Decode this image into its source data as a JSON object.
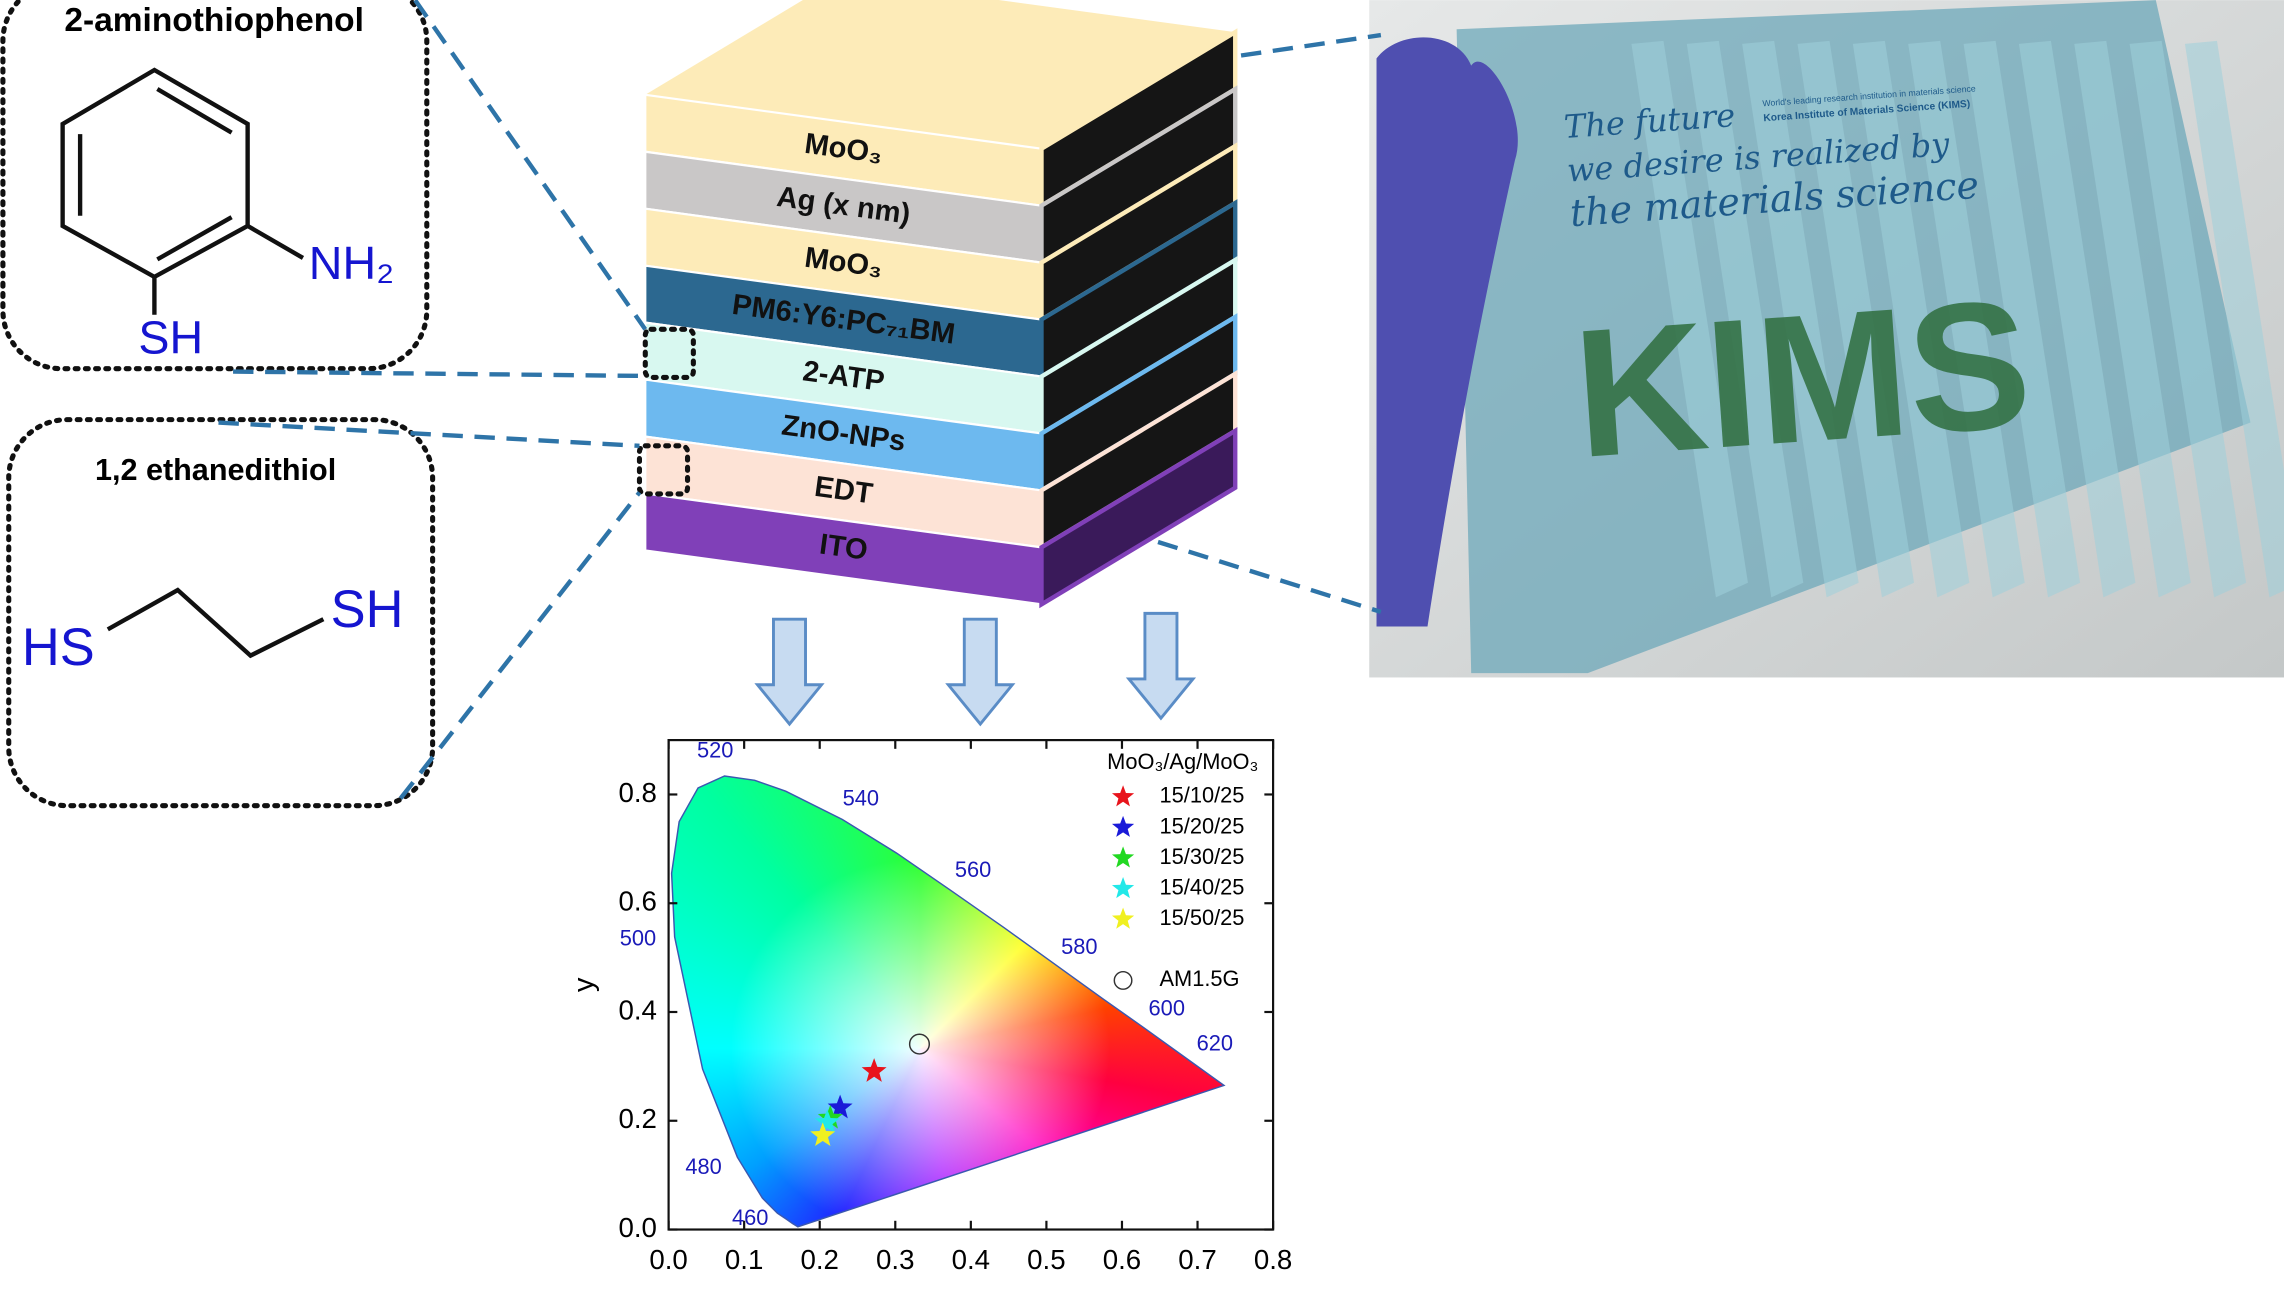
{
  "figure": {
    "molecule_1": {
      "name": "2-aminothiophenol",
      "groups": [
        "NH₂",
        "SH"
      ]
    },
    "molecule_2": {
      "name": "1,2 ethanedithiol",
      "groups": [
        "HS",
        "SH"
      ]
    },
    "layers": [
      {
        "label": "MoO₃",
        "color": "#fdebb8"
      },
      {
        "label": "Ag (x nm)",
        "color": "#c9c7c7"
      },
      {
        "label": "MoO₃",
        "color": "#fdebb8"
      },
      {
        "label": "PM6:Y6:PC₇₁BM",
        "color": "#2c6890"
      },
      {
        "label": "2-ATP",
        "color": "#d8f8f0"
      },
      {
        "label": "ZnO-NPs",
        "color": "#6db9ef"
      },
      {
        "label": "EDT",
        "color": "#fde3d6"
      },
      {
        "label": "ITO",
        "color": "#8040b8"
      }
    ],
    "photo": {
      "lines": [
        "The future",
        "we desire is realized by",
        "the materials science"
      ],
      "small_text": [
        "World's leading research institution in materials science",
        "Korea Institute of Materials Science (KIMS)"
      ],
      "logo": "KIMS"
    }
  },
  "chart_data": {
    "type": "scatter",
    "y_label": "y",
    "xlim": [
      0,
      0.8
    ],
    "ylim": [
      0,
      0.9
    ],
    "xticks": [
      {
        "value": 0,
        "label": "0.0"
      },
      0.1,
      0.2,
      0.3,
      0.4,
      0.5,
      0.6,
      0.7,
      0.8
    ],
    "yticks": [
      {
        "value": 0,
        "label": "0.0"
      },
      0.2,
      0.4,
      0.6,
      0.8
    ],
    "legend_title": "MoO₃/Ag/MoO₃",
    "wavelength_labels": [
      460,
      480,
      500,
      520,
      540,
      560,
      580,
      600,
      620
    ],
    "series": [
      {
        "name": "15/10/25",
        "color": "#e8141c",
        "marker": "star",
        "x": [
          0.272
        ],
        "values": [
          0.291
        ]
      },
      {
        "name": "15/20/25",
        "color": "#1a1ad8",
        "marker": "star",
        "x": [
          0.227
        ],
        "values": [
          0.224
        ]
      },
      {
        "name": "15/30/25",
        "color": "#22d822",
        "marker": "star",
        "x": [
          0.214
        ],
        "values": [
          0.205
        ]
      },
      {
        "name": "15/40/25",
        "color": "#22e8e8",
        "marker": "star",
        "x": [
          0.21
        ],
        "values": [
          0.197
        ]
      },
      {
        "name": "15/50/25",
        "color": "#f0f020",
        "marker": "star",
        "x": [
          0.204
        ],
        "values": [
          0.173
        ]
      },
      {
        "name": "AM1.5G",
        "color": "#333333",
        "marker": "circle",
        "x": [
          0.332
        ],
        "values": [
          0.341
        ]
      }
    ]
  }
}
